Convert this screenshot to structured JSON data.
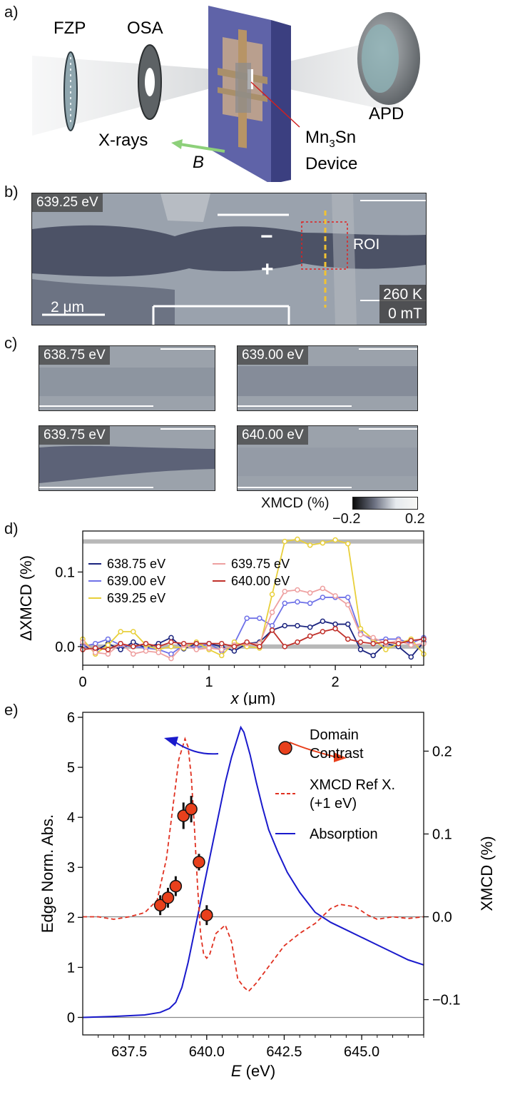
{
  "panel_a": {
    "label": "a)",
    "fzp": "FZP",
    "osa": "OSA",
    "apd": "APD",
    "xrays": "X-rays",
    "field": "B",
    "device_line1": "Mn",
    "device_sub": "3",
    "device_rest": "Sn",
    "device_line2": "Device"
  },
  "panel_b": {
    "label": "b)",
    "energy": "639.25 eV",
    "minus": "−",
    "plus": "+",
    "roi": "ROI",
    "scalebar": "2 μm",
    "temperature": "260 K",
    "field": "0 mT"
  },
  "panel_c": {
    "label": "c)",
    "maps": [
      "638.75 eV",
      "639.00 eV",
      "639.75 eV",
      "640.00 eV"
    ],
    "colorbar_label": "XMCD (%)",
    "colorbar_min": "−0.2",
    "colorbar_max": "0.2"
  },
  "chart_data": [
    {
      "panel": "d)",
      "type": "line",
      "xlabel_italic": "x",
      "xlabel_unit": "(μm)",
      "ylabel": "ΔXMCD (%)",
      "xlim": [
        0,
        2.7
      ],
      "ylim": [
        -0.025,
        0.155
      ],
      "xticks": [
        0,
        1,
        2
      ],
      "yticks": [
        0.0,
        0.1
      ],
      "ytick_labels": [
        "0.0",
        "0.1"
      ],
      "reference_levels": [
        0.0,
        0.141
      ],
      "x": [
        0,
        0.1,
        0.2,
        0.3,
        0.4,
        0.5,
        0.6,
        0.7,
        0.8,
        0.9,
        1.0,
        1.1,
        1.2,
        1.3,
        1.4,
        1.5,
        1.6,
        1.7,
        1.8,
        1.9,
        2.0,
        2.1,
        2.2,
        2.3,
        2.4,
        2.5,
        2.6,
        2.7
      ],
      "series": [
        {
          "name": "638.75 eV",
          "color": "#1a237e",
          "values": [
            0.002,
            -0.006,
            0.004,
            -0.004,
            0.006,
            -0.002,
            0.004,
            0.012,
            -0.003,
            0.004,
            0.004,
            0.0,
            -0.006,
            0.004,
            0.006,
            0.022,
            0.028,
            0.028,
            0.026,
            0.034,
            0.03,
            0.03,
            -0.004,
            -0.012,
            0.004,
            0.0,
            -0.014,
            0.006
          ]
        },
        {
          "name": "639.00 eV",
          "color": "#6f72e8",
          "values": [
            0.0,
            0.004,
            0.01,
            0.002,
            0.0,
            -0.002,
            -0.004,
            -0.01,
            0.002,
            -0.002,
            0.004,
            -0.006,
            0.004,
            0.038,
            0.038,
            0.028,
            0.058,
            0.06,
            0.058,
            0.066,
            0.066,
            0.066,
            0.018,
            0.008,
            0.01,
            0.01,
            0.004,
            0.012
          ]
        },
        {
          "name": "639.25 eV",
          "color": "#e8cf3a",
          "values": [
            0.01,
            -0.01,
            0.002,
            0.02,
            0.02,
            0.002,
            -0.004,
            0.0,
            -0.002,
            0.006,
            -0.004,
            -0.012,
            0.006,
            0.0,
            -0.002,
            0.07,
            0.141,
            0.144,
            0.136,
            0.139,
            0.143,
            0.138,
            0.024,
            0.01,
            -0.004,
            0.004,
            0.01,
            -0.01
          ]
        },
        {
          "name": "639.75 eV",
          "color": "#eea0a0",
          "values": [
            0.006,
            -0.008,
            -0.01,
            0.004,
            -0.01,
            -0.006,
            -0.008,
            -0.016,
            0.002,
            -0.004,
            -0.002,
            -0.004,
            0.002,
            0.004,
            0.004,
            0.046,
            0.074,
            0.076,
            0.072,
            0.078,
            0.068,
            0.056,
            0.016,
            0.012,
            0.004,
            0.008,
            0.002,
            0.004
          ]
        },
        {
          "name": "640.00 eV",
          "color": "#c0302a",
          "values": [
            -0.004,
            -0.002,
            -0.004,
            0.004,
            0.0,
            0.004,
            0.0,
            0.006,
            0.004,
            0.004,
            0.004,
            0.004,
            0.0,
            0.006,
            0.0,
            0.022,
            0.0,
            0.006,
            0.014,
            0.02,
            0.024,
            0.01,
            0.006,
            0.004,
            0.006,
            0.004,
            0.008,
            0.01
          ]
        }
      ]
    },
    {
      "panel": "e)",
      "type": "line",
      "xlabel_italic": "E",
      "xlabel_unit": "(eV)",
      "ylabel_left": "Edge Norm. Abs.",
      "ylabel_right": "XMCD (%)",
      "xlim": [
        636,
        647
      ],
      "ylim_left": [
        -0.35,
        6.1
      ],
      "ylim_right": [
        -0.1426,
        0.2469
      ],
      "xticks": [
        637.5,
        640.0,
        642.5,
        645.0
      ],
      "xtick_labels": [
        "637.5",
        "640.0",
        "642.5",
        "645.0"
      ],
      "yticks_left": [
        0,
        1,
        2,
        3,
        4,
        5,
        6
      ],
      "yticks_right": [
        -0.1,
        0.0,
        0.1,
        0.2
      ],
      "ytick_labels_right": [
        "−0.1",
        "0.0",
        "0.1",
        "0.2"
      ],
      "series": [
        {
          "name": "Absorption",
          "color": "#1a1acc",
          "axis": "left",
          "x": [
            636,
            637,
            638,
            638.5,
            638.8,
            639.0,
            639.2,
            639.4,
            639.6,
            639.8,
            640.0,
            640.2,
            640.4,
            640.6,
            640.8,
            641.0,
            641.1,
            641.2,
            641.4,
            641.6,
            641.8,
            642.0,
            642.3,
            642.6,
            643.0,
            643.5,
            644.0,
            644.5,
            645.0,
            645.5,
            646.0,
            646.5,
            647.0
          ],
          "values": [
            0.0,
            0.02,
            0.05,
            0.1,
            0.18,
            0.3,
            0.6,
            1.1,
            1.7,
            2.3,
            2.9,
            3.5,
            4.1,
            4.7,
            5.2,
            5.6,
            5.8,
            5.7,
            5.25,
            4.7,
            4.2,
            3.75,
            3.3,
            2.9,
            2.5,
            2.1,
            1.9,
            1.75,
            1.6,
            1.45,
            1.3,
            1.15,
            1.05
          ]
        },
        {
          "name": "XMCD Ref X. (+1 eV)",
          "color": "#e03020",
          "axis": "right",
          "style": "dashed",
          "x": [
            636,
            636.5,
            637,
            637.5,
            638,
            638.4,
            638.7,
            638.9,
            639.1,
            639.3,
            639.4,
            639.5,
            639.6,
            639.7,
            639.8,
            639.9,
            640.0,
            640.1,
            640.3,
            640.6,
            640.8,
            641.0,
            641.2,
            641.35,
            641.6,
            642.0,
            642.5,
            643.0,
            643.5,
            644.0,
            644.3,
            644.8,
            645.2,
            645.5,
            646.0,
            646.5,
            647.0
          ],
          "values": [
            0.0,
            0.0,
            -0.003,
            0.0,
            0.005,
            0.02,
            0.07,
            0.13,
            0.19,
            0.215,
            0.205,
            0.17,
            0.11,
            0.04,
            -0.02,
            -0.045,
            -0.05,
            -0.045,
            -0.02,
            -0.01,
            -0.03,
            -0.075,
            -0.085,
            -0.09,
            -0.08,
            -0.06,
            -0.035,
            -0.02,
            -0.008,
            0.01,
            0.015,
            0.012,
            0.002,
            -0.003,
            0.0,
            -0.002,
            0.0
          ]
        },
        {
          "name": "Domain Contrast",
          "color": "#e8401c",
          "axis": "right",
          "style": "points",
          "x": [
            638.5,
            638.75,
            639.0,
            639.25,
            639.5,
            639.75,
            640.0
          ],
          "values": [
            0.014,
            0.023,
            0.037,
            0.122,
            0.13,
            0.066,
            0.002
          ],
          "errors": [
            0.012,
            0.012,
            0.012,
            0.016,
            0.016,
            0.01,
            0.012
          ]
        }
      ],
      "legend": [
        "Domain Contrast",
        "XMCD Ref X. (+1 eV)",
        "Absorption"
      ],
      "legend_domain_line1": "Domain",
      "legend_domain_line2": "Contrast",
      "legend_ref_line1": "XMCD Ref X.",
      "legend_ref_line2": "(+1 eV)",
      "legend_abs": "Absorption"
    }
  ]
}
